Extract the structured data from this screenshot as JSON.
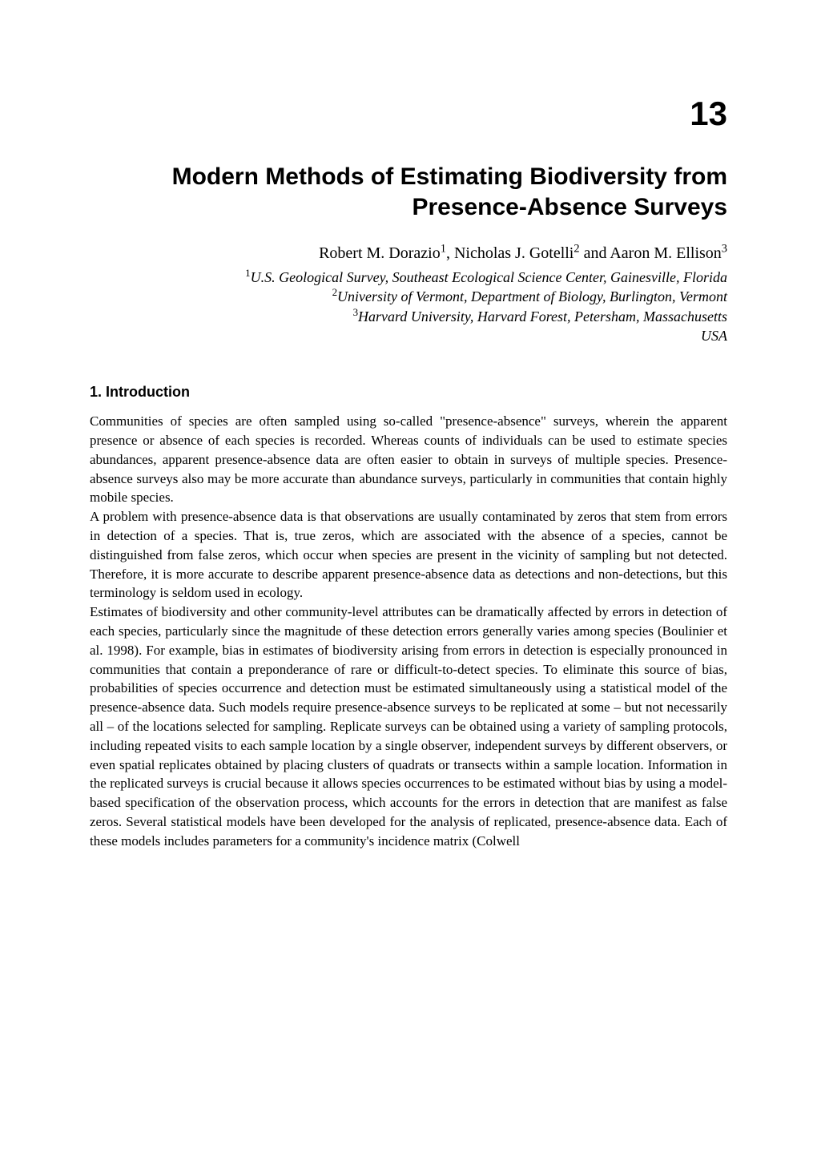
{
  "chapter": {
    "number": "13",
    "title_line1": "Modern Methods of Estimating Biodiversity from",
    "title_line2": "Presence-Absence Surveys"
  },
  "authors": {
    "a1_name": "Robert M. Dorazio",
    "a1_sup": "1",
    "sep1": ", ",
    "a2_name": "Nicholas J. Gotelli",
    "a2_sup": "2",
    "sep2": " and ",
    "a3_name": "Aaron M. Ellison",
    "a3_sup": "3"
  },
  "affiliations": {
    "l1_sup": "1",
    "l1": "U.S. Geological Survey, Southeast Ecological Science Center, Gainesville, Florida",
    "l2_sup": "2",
    "l2": "University of Vermont, Department of Biology, Burlington, Vermont",
    "l3_sup": "3",
    "l3": "Harvard University, Harvard Forest, Petersham, Massachusetts",
    "l4": "USA"
  },
  "section1": {
    "heading": "1. Introduction",
    "p1": "Communities of species are often sampled using so-called \"presence-absence\" surveys, wherein the apparent presence or absence of each species is recorded. Whereas counts of individuals can be used to estimate species abundances, apparent presence-absence data are often easier to obtain in surveys of multiple species. Presence-absence surveys also may be more accurate than abundance surveys, particularly in communities that contain highly mobile species.",
    "p2": "A problem with presence-absence data is that observations are usually contaminated by zeros that stem from errors in detection of a species. That is, true zeros, which are associated with the absence of a species, cannot be distinguished from false zeros, which occur when species are present in the vicinity of sampling but not detected. Therefore, it is more accurate to describe apparent presence-absence data as detections and non-detections, but this terminology is seldom used in ecology.",
    "p3": "Estimates of biodiversity and other community-level attributes can be dramatically affected by errors in detection of each species, particularly since the magnitude of these detection errors generally varies among species (Boulinier et al. 1998). For example, bias in estimates of biodiversity arising from errors in detection is especially pronounced in communities that contain a preponderance of rare or difficult-to-detect species. To eliminate this source of bias, probabilities of species occurrence and detection must be estimated simultaneously using a statistical model of the presence-absence data. Such models require presence-absence surveys to be replicated at some – but not necessarily all – of the locations selected for sampling. Replicate surveys can be obtained using a variety of sampling protocols, including repeated visits to each sample location by a single observer, independent surveys by different observers, or even spatial replicates obtained by placing clusters of quadrats or transects within a sample location. Information in the replicated surveys is crucial because it allows species occurrences to be estimated without bias by using a model-based specification of the observation process, which accounts for the errors in detection that are manifest as false zeros. Several statistical models have been developed for the analysis of replicated, presence-absence data. Each of these models includes parameters for a community's incidence matrix (Colwell"
  }
}
